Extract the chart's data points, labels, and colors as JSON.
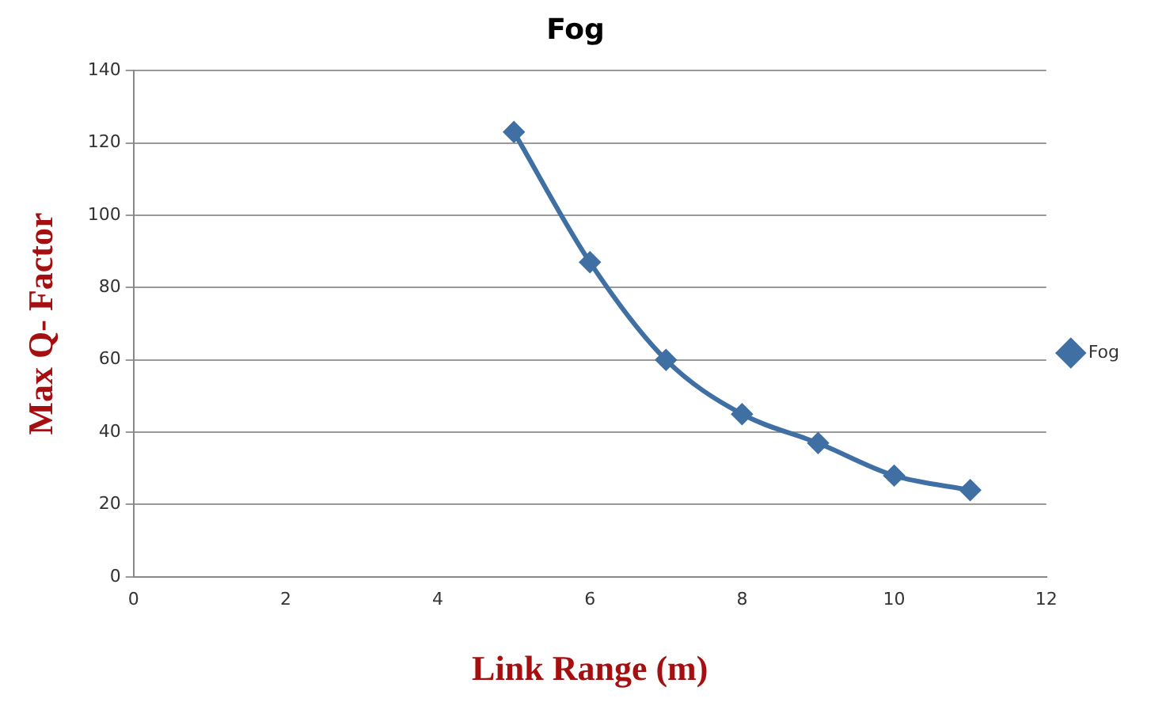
{
  "chart_data": {
    "type": "line",
    "title": "Fog",
    "xlabel": "Link Range (m)",
    "ylabel": "Max Q- Factor",
    "x": [
      5,
      6,
      7,
      8,
      9,
      10,
      11
    ],
    "series": [
      {
        "name": "Fog",
        "color": "#3f6fa3",
        "values": [
          123,
          87,
          60,
          45,
          37,
          28,
          24
        ]
      }
    ],
    "xlim": [
      0,
      12
    ],
    "xticks": [
      0,
      2,
      4,
      6,
      8,
      10,
      12
    ],
    "ylim": [
      0,
      140
    ],
    "yticks": [
      0,
      20,
      40,
      60,
      80,
      100,
      120,
      140
    ],
    "grid": "y",
    "legend": "right",
    "marker": "diamond",
    "line_style": "solid"
  }
}
